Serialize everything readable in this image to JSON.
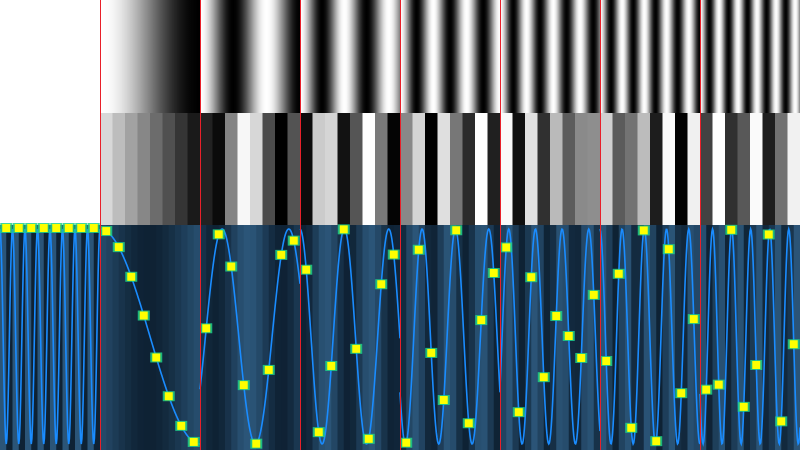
{
  "pattern": {
    "columns": 8,
    "bands": [
      "continuous-gradient",
      "quantized-steps",
      "sampled-waveform"
    ],
    "colors": {
      "background": "#ffffff",
      "divider": "#e8202a",
      "wave": "#1a8cff",
      "wave_bg_light": "#2b5578",
      "wave_bg_dark": "#0b1c2c",
      "sample_core": "#ffff00",
      "sample_edge": "#1fd08a"
    }
  }
}
